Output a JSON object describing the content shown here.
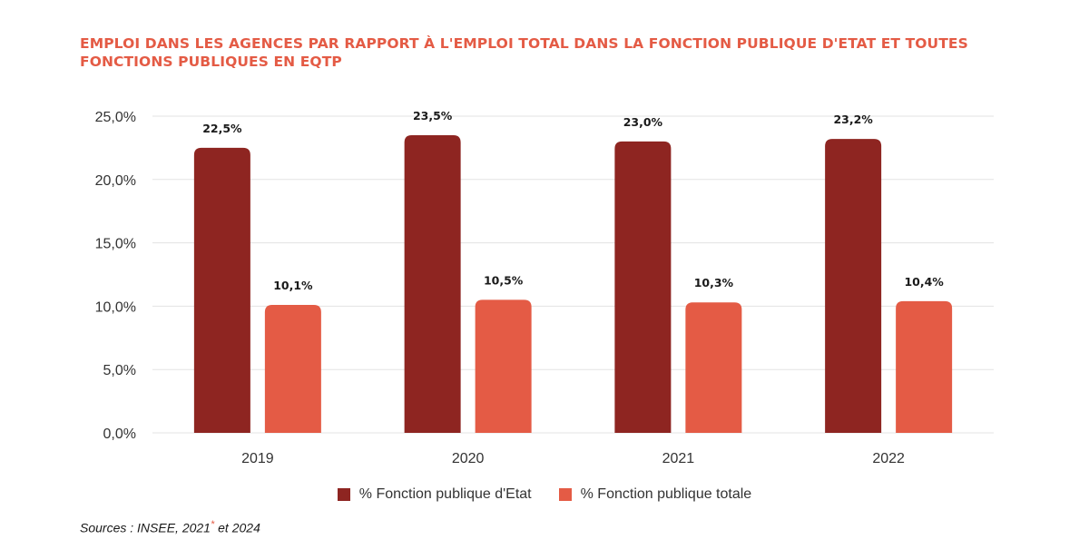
{
  "chart_data": {
    "type": "bar",
    "title": "EMPLOI DANS LES AGENCES PAR RAPPORT À L'EMPLOI TOTAL DANS LA FONCTION PUBLIQUE D'ETAT ET TOUTES FONCTIONS PUBLIQUES EN EQTP",
    "categories": [
      "2019",
      "2020",
      "2021",
      "2022"
    ],
    "series": [
      {
        "name": "% Fonction publique d'Etat",
        "values": [
          22.5,
          23.5,
          23.0,
          23.2
        ],
        "labels": [
          "22,5%",
          "23,5%",
          "23,0%",
          "23,2%"
        ],
        "color": "#8e2521"
      },
      {
        "name": "% Fonction publique totale",
        "values": [
          10.1,
          10.5,
          10.3,
          10.4
        ],
        "labels": [
          "10,1%",
          "10,5%",
          "10,3%",
          "10,4%"
        ],
        "color": "#e45b45"
      }
    ],
    "ylim": [
      0,
      25
    ],
    "yticks": [
      0,
      5,
      10,
      15,
      20,
      25
    ],
    "ytick_labels": [
      "0,0%",
      "5,0%",
      "10,0%",
      "15,0%",
      "20,0%",
      "25,0%"
    ],
    "xlabel": "",
    "ylabel": "",
    "grid": true,
    "legend_position": "bottom"
  },
  "source": {
    "text": "Sources : INSEE, 2021",
    "star": "*",
    "suffix": " et 2024"
  },
  "colors": {
    "title": "#e45b45",
    "grid": "#e3e3e3",
    "axis_text": "#333333"
  }
}
